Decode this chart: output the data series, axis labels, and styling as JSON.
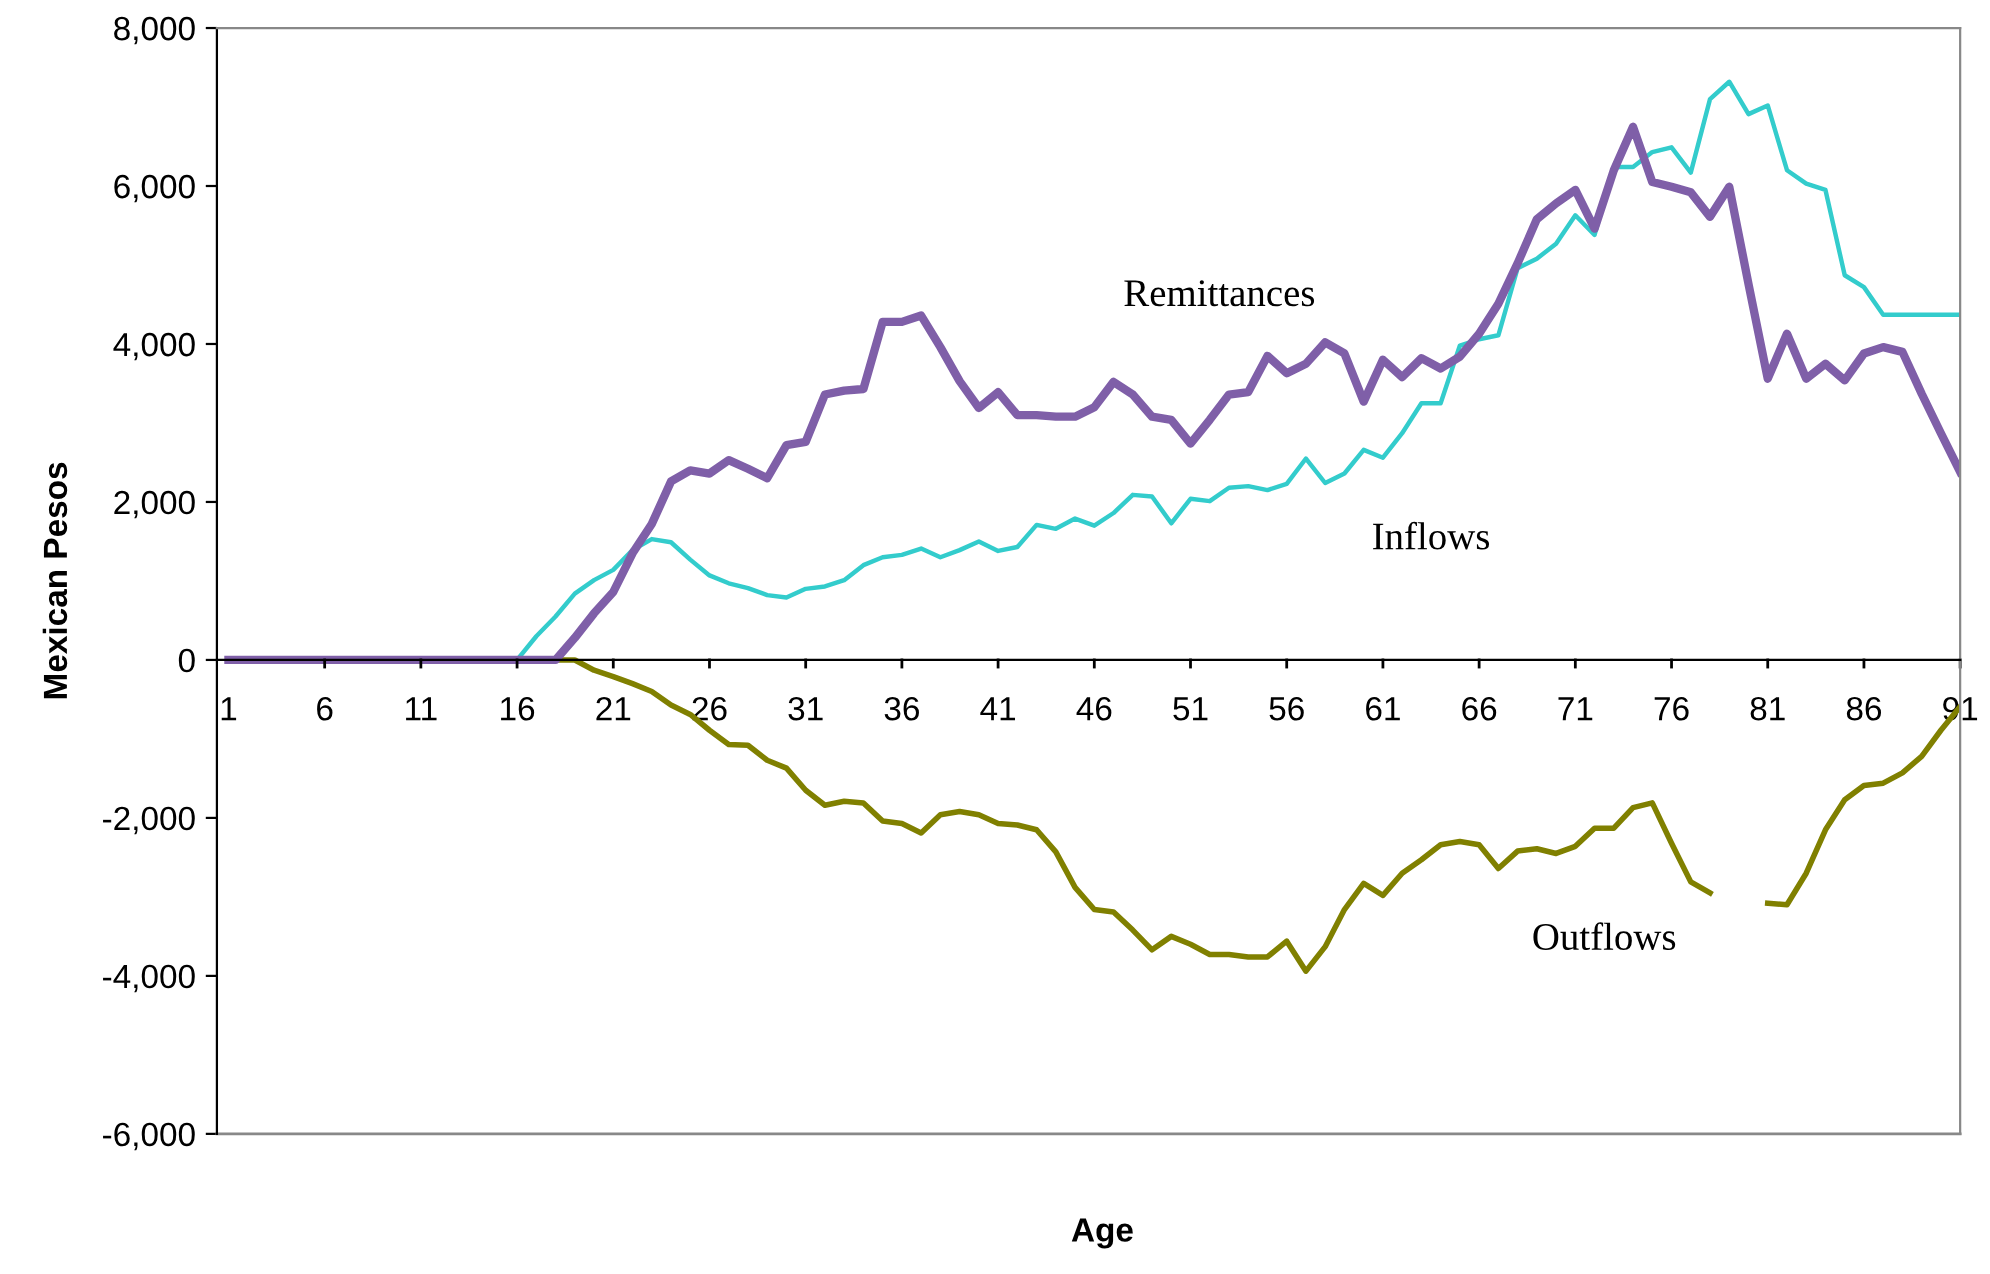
{
  "chart_data": {
    "type": "line",
    "xlabel": "Age",
    "ylabel": "Mexican Pesos",
    "categories": [
      "1",
      null,
      null,
      null,
      null,
      "6",
      null,
      null,
      null,
      null,
      "11",
      null,
      null,
      null,
      null,
      "16",
      null,
      null,
      null,
      null,
      "21",
      null,
      null,
      null,
      null,
      "26",
      null,
      null,
      null,
      null,
      "31",
      null,
      null,
      null,
      null,
      "36",
      null,
      null,
      null,
      null,
      "41",
      null,
      null,
      null,
      null,
      "46",
      null,
      null,
      null,
      null,
      "51",
      null,
      null,
      null,
      null,
      "56",
      null,
      null,
      null,
      null,
      "61",
      null,
      null,
      null,
      null,
      "66",
      null,
      null,
      null,
      null,
      "71",
      null,
      null,
      null,
      null,
      "76",
      null,
      null,
      null,
      null,
      "81",
      null,
      null,
      null,
      null,
      "86",
      null,
      null,
      null,
      null,
      "91"
    ],
    "ylim": [
      -6000,
      8000
    ],
    "yticks": [
      {
        "value": -6000,
        "label": "-6,000"
      },
      {
        "value": -4000,
        "label": "-4,000"
      },
      {
        "value": -2000,
        "label": "-2,000"
      },
      0,
      {
        "value": 2000,
        "label": "2,000"
      },
      {
        "value": 4000,
        "label": "4,000"
      },
      {
        "value": 6000,
        "label": "6,000"
      },
      {
        "value": 8000,
        "label": "8,000"
      }
    ],
    "grid": false,
    "legend": false,
    "marker": "none",
    "line_style": "solid",
    "series": [
      {
        "name": "Outflows",
        "color": "#808000",
        "values": [
          null,
          null,
          null,
          null,
          null,
          null,
          null,
          null,
          null,
          null,
          null,
          null,
          null,
          null,
          null,
          null,
          null,
          0,
          0,
          -130,
          -210,
          -300,
          -400,
          -570,
          -690,
          -890,
          -1070,
          -1080,
          -1270,
          -1370,
          -1650,
          -1840,
          -1790,
          -1810,
          -2040,
          -2070,
          -2190,
          -1960,
          -1920,
          -1960,
          -2070,
          -2090,
          -2150,
          -2430,
          -2880,
          -3160,
          -3190,
          -3420,
          -3670,
          -3500,
          -3600,
          -3730,
          -3730,
          -3760,
          -3760,
          -3560,
          -3940,
          -3630,
          -3160,
          -2830,
          -2980,
          -2700,
          -2530,
          -2340,
          -2300,
          -2340,
          -2640,
          -2420,
          -2390,
          -2450,
          -2360,
          -2130,
          -2130,
          -1870,
          -1810,
          -2320,
          -2810,
          -2950,
          null,
          null,
          -3080,
          -3100,
          -2700,
          -2150,
          -1770,
          -1590,
          -1560,
          -1430,
          -1220,
          -890,
          -590
        ]
      },
      {
        "name": "Inflows",
        "color": "#33cccc",
        "values": [
          null,
          null,
          null,
          null,
          null,
          null,
          null,
          null,
          null,
          null,
          null,
          null,
          null,
          null,
          null,
          0,
          300,
          550,
          840,
          1010,
          1140,
          1390,
          1530,
          1490,
          1270,
          1070,
          970,
          910,
          820,
          790,
          900,
          930,
          1010,
          1200,
          1300,
          1330,
          1410,
          1300,
          1390,
          1500,
          1380,
          1430,
          1710,
          1660,
          1790,
          1700,
          1860,
          2090,
          2070,
          1730,
          2040,
          2010,
          2180,
          2200,
          2150,
          2230,
          2550,
          2240,
          2360,
          2660,
          2560,
          2870,
          3250,
          3250,
          3980,
          4060,
          4110,
          4960,
          5080,
          5270,
          5630,
          5380,
          6240,
          6240,
          6430,
          6490,
          6170,
          7100,
          7320,
          6910,
          7020,
          6200,
          6030,
          5950,
          4870,
          4720,
          4370,
          4370,
          4370,
          4370,
          4370
        ]
      },
      {
        "name": "Remittances",
        "color": "#7f5fa8",
        "values": [
          0,
          0,
          0,
          0,
          0,
          0,
          0,
          0,
          0,
          0,
          0,
          0,
          0,
          0,
          0,
          0,
          0,
          0,
          280,
          590,
          860,
          1350,
          1720,
          2260,
          2400,
          2360,
          2530,
          2420,
          2300,
          2720,
          2760,
          3360,
          3410,
          3430,
          4280,
          4280,
          4360,
          3960,
          3530,
          3190,
          3390,
          3100,
          3100,
          3080,
          3080,
          3200,
          3520,
          3360,
          3080,
          3040,
          2740,
          3040,
          3360,
          3390,
          3850,
          3630,
          3750,
          4020,
          3880,
          3270,
          3800,
          3580,
          3820,
          3690,
          3840,
          4130,
          4510,
          5020,
          5580,
          5780,
          5950,
          5460,
          6200,
          6750,
          6050,
          5990,
          5920,
          5610,
          5990,
          4760,
          3560,
          4130,
          3560,
          3750,
          3540,
          3880,
          3960,
          3900,
          3370,
          2870,
          2380
        ]
      }
    ]
  }
}
